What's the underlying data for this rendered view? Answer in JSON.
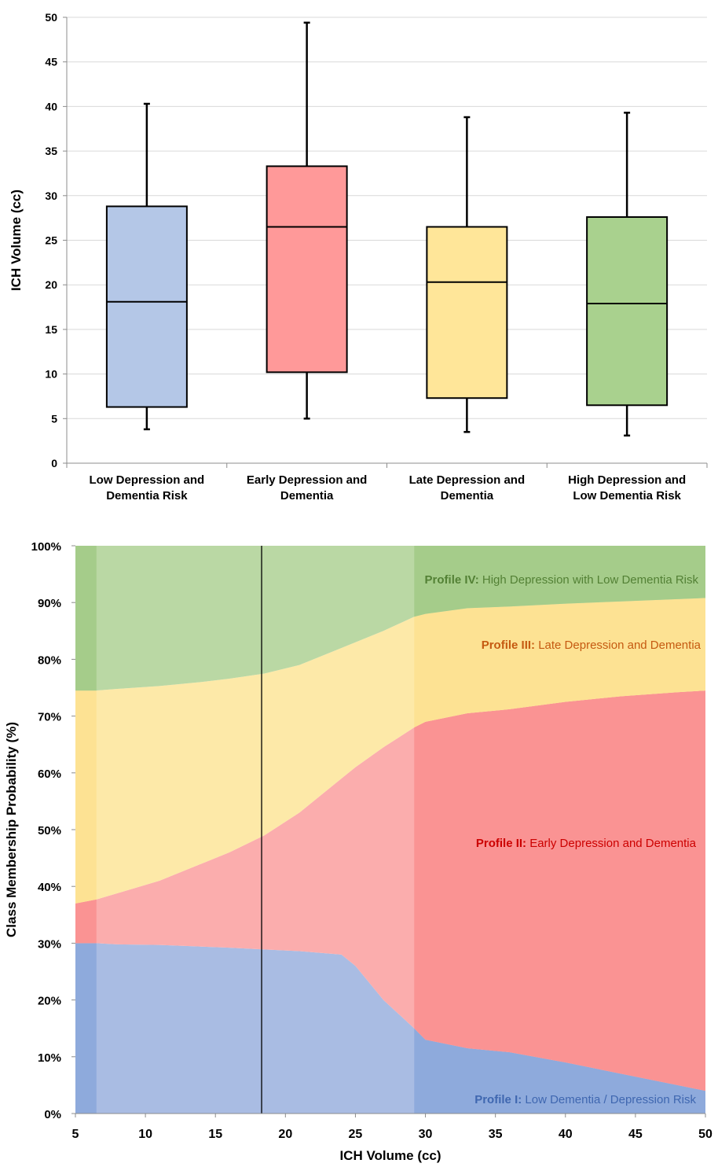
{
  "chart_data": [
    {
      "type": "box",
      "ylabel": "ICH Volume (cc)",
      "ylim": [
        0,
        50
      ],
      "yticks": [
        "0",
        "5",
        "10",
        "15",
        "20",
        "25",
        "30",
        "35",
        "40",
        "45",
        "50"
      ],
      "grid": true,
      "categories": [
        [
          "Low Depression and",
          "Dementia Risk"
        ],
        [
          "Early Depression and",
          "Dementia"
        ],
        [
          "Late Depression and",
          "Dementia"
        ],
        [
          "High Depression and",
          "Low Dementia Risk"
        ]
      ],
      "boxes": [
        {
          "min": 3.8,
          "q1": 6.3,
          "median": 18.1,
          "q3": 28.8,
          "max": 40.3,
          "color": "#b4c7e7"
        },
        {
          "min": 5.0,
          "q1": 10.2,
          "median": 26.5,
          "q3": 33.3,
          "max": 49.4,
          "color": "#ff9999"
        },
        {
          "min": 3.5,
          "q1": 7.3,
          "median": 20.3,
          "q3": 26.5,
          "max": 38.8,
          "color": "#ffe699"
        },
        {
          "min": 3.1,
          "q1": 6.5,
          "median": 17.9,
          "q3": 27.6,
          "max": 39.3,
          "color": "#a9d18e"
        }
      ]
    },
    {
      "type": "area",
      "stacked": true,
      "xlabel": "ICH Volume (cc)",
      "ylabel": "Class Membership Probability (%)",
      "xlim": [
        5,
        50
      ],
      "ylim": [
        0,
        100
      ],
      "xticks": [
        "5",
        "10",
        "15",
        "20",
        "25",
        "30",
        "35",
        "40",
        "45",
        "50"
      ],
      "yticks": [
        "0%",
        "10%",
        "20%",
        "30%",
        "40%",
        "50%",
        "60%",
        "70%",
        "80%",
        "90%",
        "100%"
      ],
      "x": [
        5,
        6.5,
        8,
        11,
        14,
        16,
        18.5,
        21,
        24,
        25,
        27,
        29.2,
        30,
        33,
        36,
        40,
        44,
        48,
        50
      ],
      "boundaries": [
        {
          "name": "top_of_profile_I",
          "values": [
            30,
            30,
            29.8,
            29.7,
            29.4,
            29.2,
            28.9,
            28.6,
            28,
            26,
            20,
            15,
            13,
            11.5,
            10.8,
            9,
            7,
            5,
            4
          ]
        },
        {
          "name": "top_of_profile_II",
          "values": [
            37,
            37.7,
            38.8,
            41,
            44,
            46,
            49,
            53,
            59,
            61,
            64.5,
            68,
            69,
            70.5,
            71.2,
            72.5,
            73.5,
            74.2,
            74.5
          ]
        },
        {
          "name": "top_of_profile_III",
          "values": [
            74.5,
            74.5,
            74.8,
            75.3,
            76,
            76.6,
            77.5,
            79,
            82,
            83,
            85,
            87.5,
            88,
            89,
            89.3,
            89.8,
            90.2,
            90.6,
            90.8
          ]
        }
      ],
      "profiles": [
        {
          "label": "Profile I:",
          "desc": "Low Dementia  /  Depression  Risk",
          "color": "#a9bce3",
          "dark": "#8eaadc",
          "text_color": "#3f67b0"
        },
        {
          "label": "Profile II:",
          "desc": "Early Depression  and  Dementia",
          "color": "#fbadad",
          "dark": "#fa9393",
          "text_color": "#cc0000"
        },
        {
          "label": "Profile III:",
          "desc": "Late Depression  and  Dementia",
          "color": "#fde9a8",
          "dark": "#fde293",
          "text_color": "#c55a11"
        },
        {
          "label": "Profile IV:",
          "desc": "High Depression  with Low  Dementia  Risk",
          "color": "#bad8a4",
          "dark": "#a5cc8a",
          "text_color": "#538135"
        }
      ],
      "median_marker_x": 18.3,
      "shaded_regions": [
        [
          5,
          6.5
        ],
        [
          29.2,
          50
        ]
      ]
    }
  ]
}
